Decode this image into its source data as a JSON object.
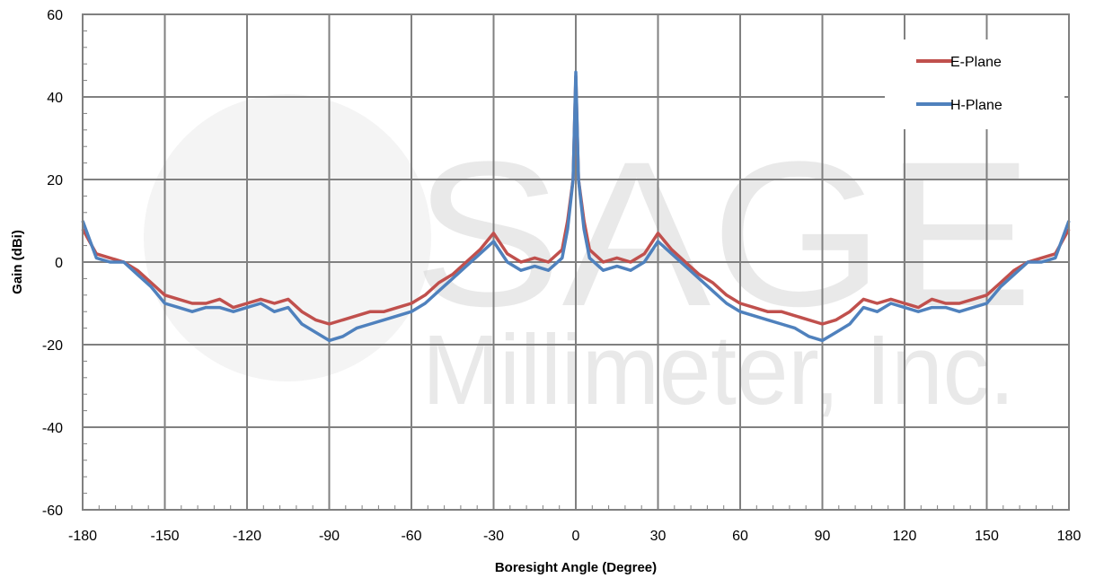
{
  "chart_data": {
    "type": "line",
    "title": "",
    "xlabel": "Boresight Angle (Degree)",
    "ylabel": "Gain (dBi)",
    "xlim": [
      -180,
      180
    ],
    "ylim": [
      -60,
      60
    ],
    "xticks": [
      -180,
      -150,
      -120,
      -90,
      -60,
      -30,
      0,
      30,
      60,
      90,
      120,
      150,
      180
    ],
    "yticks": [
      -60,
      -40,
      -20,
      0,
      20,
      40,
      60
    ],
    "grid": true,
    "legend_position": "top-right",
    "watermark": {
      "line1": "SAGE",
      "line2": "Millimeter, Inc."
    },
    "series": [
      {
        "name": "E-Plane",
        "color": "#c0504d",
        "x": [
          -180,
          -175,
          -170,
          -165,
          -160,
          -155,
          -150,
          -145,
          -140,
          -135,
          -130,
          -125,
          -120,
          -115,
          -110,
          -105,
          -100,
          -95,
          -90,
          -85,
          -80,
          -75,
          -70,
          -65,
          -60,
          -55,
          -50,
          -45,
          -40,
          -35,
          -30,
          -25,
          -20,
          -15,
          -10,
          -5,
          -3,
          -1,
          0,
          1,
          3,
          5,
          10,
          15,
          20,
          25,
          30,
          35,
          40,
          45,
          50,
          55,
          60,
          65,
          70,
          75,
          80,
          85,
          90,
          95,
          100,
          105,
          110,
          115,
          120,
          125,
          130,
          135,
          140,
          145,
          150,
          155,
          160,
          165,
          170,
          175,
          180
        ],
        "y": [
          8,
          2,
          1,
          0,
          -2,
          -5,
          -8,
          -9,
          -10,
          -10,
          -9,
          -11,
          -10,
          -9,
          -10,
          -9,
          -12,
          -14,
          -15,
          -14,
          -13,
          -12,
          -12,
          -11,
          -10,
          -8,
          -5,
          -3,
          0,
          3,
          7,
          2,
          0,
          1,
          0,
          3,
          10,
          20,
          45,
          20,
          10,
          3,
          0,
          1,
          0,
          2,
          7,
          3,
          0,
          -3,
          -5,
          -8,
          -10,
          -11,
          -12,
          -12,
          -13,
          -14,
          -15,
          -14,
          -12,
          -9,
          -10,
          -9,
          -10,
          -11,
          -9,
          -10,
          -10,
          -9,
          -8,
          -5,
          -2,
          0,
          1,
          2,
          8
        ]
      },
      {
        "name": "H-Plane",
        "color": "#4f81bd",
        "x": [
          -180,
          -175,
          -170,
          -165,
          -160,
          -155,
          -150,
          -145,
          -140,
          -135,
          -130,
          -125,
          -120,
          -115,
          -110,
          -105,
          -100,
          -95,
          -90,
          -85,
          -80,
          -75,
          -70,
          -65,
          -60,
          -55,
          -50,
          -45,
          -40,
          -35,
          -30,
          -25,
          -20,
          -15,
          -10,
          -5,
          -3,
          -1,
          0,
          1,
          3,
          5,
          10,
          15,
          20,
          25,
          30,
          35,
          40,
          45,
          50,
          55,
          60,
          65,
          70,
          75,
          80,
          85,
          90,
          95,
          100,
          105,
          110,
          115,
          120,
          125,
          130,
          135,
          140,
          145,
          150,
          155,
          160,
          165,
          170,
          175,
          180
        ],
        "y": [
          10,
          1,
          0,
          0,
          -3,
          -6,
          -10,
          -11,
          -12,
          -11,
          -11,
          -12,
          -11,
          -10,
          -12,
          -11,
          -15,
          -17,
          -19,
          -18,
          -16,
          -15,
          -14,
          -13,
          -12,
          -10,
          -7,
          -4,
          -1,
          2,
          5,
          0,
          -2,
          -1,
          -2,
          1,
          8,
          20,
          46,
          20,
          8,
          1,
          -2,
          -1,
          -2,
          0,
          5,
          2,
          -1,
          -4,
          -7,
          -10,
          -12,
          -13,
          -14,
          -15,
          -16,
          -18,
          -19,
          -17,
          -15,
          -11,
          -12,
          -10,
          -11,
          -12,
          -11,
          -11,
          -12,
          -11,
          -10,
          -6,
          -3,
          0,
          0,
          1,
          10
        ]
      }
    ]
  }
}
